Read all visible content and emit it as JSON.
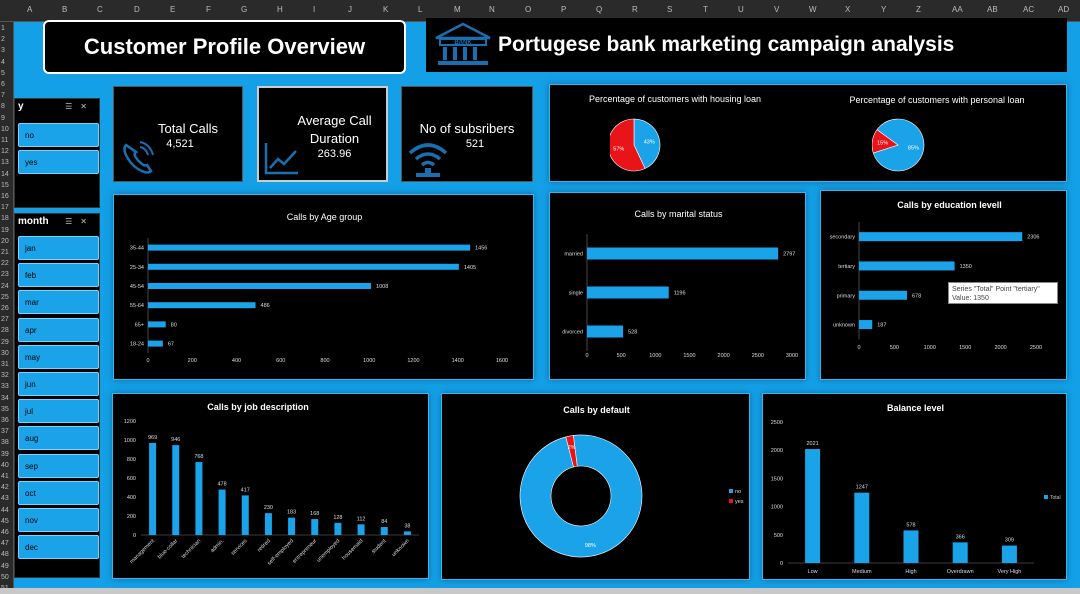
{
  "columns": [
    "A",
    "B",
    "C",
    "D",
    "E",
    "F",
    "G",
    "H",
    "I",
    "J",
    "K",
    "L",
    "M",
    "N",
    "O",
    "P",
    "Q",
    "R",
    "S",
    "T",
    "U",
    "V",
    "W",
    "X",
    "Y",
    "Z",
    "AA",
    "AB",
    "AC",
    "AD"
  ],
  "rows": [
    "1",
    "2",
    "3",
    "4",
    "5",
    "6",
    "7",
    "8",
    "9",
    "10",
    "11",
    "12",
    "13",
    "14",
    "15",
    "16",
    "17",
    "18",
    "19",
    "20",
    "21",
    "22",
    "23",
    "24",
    "25",
    "26",
    "27",
    "28",
    "29",
    "30",
    "31",
    "32",
    "33",
    "34",
    "35",
    "36",
    "37",
    "38",
    "39",
    "40",
    "41",
    "42",
    "43",
    "44",
    "45",
    "46",
    "47",
    "48",
    "49",
    "50",
    "51"
  ],
  "title": "Customer Profile Overview",
  "header": {
    "text": "Portugese bank marketing campaign analysis",
    "icon_label": "BANK"
  },
  "slicer_y": {
    "title": "y",
    "items": [
      "no",
      "yes"
    ]
  },
  "slicer_month": {
    "title": "month",
    "items": [
      "jan",
      "feb",
      "mar",
      "apr",
      "may",
      "jun",
      "jul",
      "aug",
      "sep",
      "oct",
      "nov",
      "dec"
    ]
  },
  "kpis": {
    "total_calls": {
      "label": "Total Calls",
      "value": "4,521"
    },
    "avg_duration": {
      "label_line1": "Average Call",
      "label_line2": "Duration",
      "value": "263.96"
    },
    "subscribers": {
      "label": "No of subsribers",
      "value": "521"
    }
  },
  "colors": {
    "accent": "#1aa3e8",
    "red": "#e8141a",
    "panel": "#000000"
  },
  "chart_data": [
    {
      "id": "housing",
      "type": "pie",
      "title": "Percentage of customers with housing loan",
      "categories": [
        "no",
        "yes"
      ],
      "values": [
        43,
        57
      ],
      "labels": [
        "43%",
        "57%"
      ]
    },
    {
      "id": "personal",
      "type": "pie",
      "title": "Percentage of customers with personal loan",
      "categories": [
        "no",
        "yes"
      ],
      "values": [
        85,
        15
      ],
      "labels": [
        "85%",
        "15%"
      ]
    },
    {
      "id": "age",
      "type": "bar",
      "orientation": "horizontal",
      "title": "Calls  by Age group",
      "categories": [
        "35-44",
        "25-34",
        "45-54",
        "55-64",
        "65+",
        "18-24"
      ],
      "values": [
        1456,
        1405,
        1008,
        486,
        80,
        67
      ],
      "xticks": [
        "0",
        "200",
        "400",
        "600",
        "800",
        "1000",
        "1200",
        "1400",
        "1600"
      ],
      "xlim": [
        0,
        1600
      ]
    },
    {
      "id": "marital",
      "type": "bar",
      "orientation": "horizontal",
      "title": "Calls by marital status",
      "categories": [
        "married",
        "single",
        "divorced"
      ],
      "values": [
        2797,
        1196,
        528
      ],
      "xticks": [
        "0",
        "500",
        "1000",
        "1500",
        "2000",
        "2500",
        "3000"
      ],
      "xlim": [
        0,
        3000
      ]
    },
    {
      "id": "education",
      "type": "bar",
      "orientation": "horizontal",
      "title": "Calls by education levell",
      "categories": [
        "secondary",
        "tertiary",
        "primary",
        "unknown"
      ],
      "values": [
        2306,
        1350,
        678,
        187
      ],
      "xticks": [
        "0",
        "500",
        "1000",
        "1500",
        "2000",
        "2500"
      ],
      "xlim": [
        0,
        2500
      ],
      "tooltip_line1": "Series \"Total\" Point \"tertiary\"",
      "tooltip_line2": "Value: 1350"
    },
    {
      "id": "job",
      "type": "bar",
      "title": "Calls by job description",
      "categories": [
        "management",
        "blue-collar",
        "technician",
        "admin.",
        "services",
        "retired",
        "self-employed",
        "entrepreneur",
        "unemployed",
        "housemaid",
        "student",
        "unknown"
      ],
      "values": [
        969,
        946,
        768,
        478,
        417,
        230,
        183,
        168,
        128,
        112,
        84,
        38
      ],
      "yticks": [
        "0",
        "200",
        "400",
        "600",
        "800",
        "1000",
        "1200"
      ],
      "ylim": [
        0,
        1200
      ]
    },
    {
      "id": "default",
      "type": "pie",
      "style": "doughnut",
      "title": "Calls by default",
      "categories": [
        "no",
        "yes"
      ],
      "values": [
        98,
        2
      ],
      "labels": [
        "98%",
        "2%"
      ]
    },
    {
      "id": "balance",
      "type": "bar",
      "title": "Balance level",
      "categories": [
        "Low",
        "Medium",
        "High",
        "Overdrawn",
        "Very High"
      ],
      "values": [
        2021,
        1247,
        578,
        366,
        309
      ],
      "yticks": [
        "0",
        "500",
        "1000",
        "1500",
        "2000",
        "2500"
      ],
      "ylim": [
        0,
        2500
      ],
      "legend": [
        "Total"
      ]
    }
  ]
}
